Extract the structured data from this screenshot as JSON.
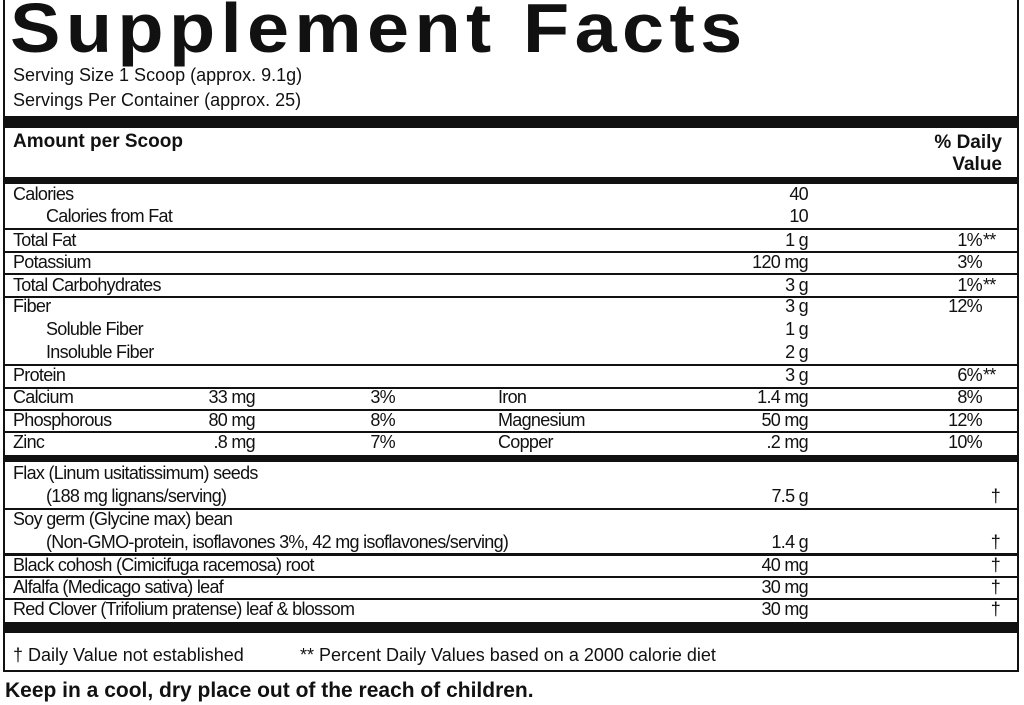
{
  "title": "Supplement Facts",
  "serving_size": "Serving Size 1 Scoop (approx. 9.1g)",
  "servings_per_container": "Servings Per Container (approx. 25)",
  "header": {
    "amount": "Amount per Scoop",
    "dv_line1": "% Daily",
    "dv_line2": "Value"
  },
  "nutrients": [
    {
      "name": "Calories",
      "amount": "40",
      "dv": ""
    },
    {
      "name": "Calories from Fat",
      "amount": "10",
      "dv": ""
    },
    {
      "name": "Total Fat",
      "amount": "1 g",
      "dv": "1%",
      "mark": "**"
    },
    {
      "name": "Potassium",
      "amount": "120 mg",
      "dv": "3%"
    },
    {
      "name": "Total Carbohydrates",
      "amount": "3 g",
      "dv": "1%",
      "mark": "**"
    },
    {
      "name": "Fiber",
      "amount": "3 g",
      "dv": "12%"
    },
    {
      "name": "Soluble Fiber",
      "amount": "1 g",
      "dv": ""
    },
    {
      "name": "Insoluble Fiber",
      "amount": "2 g",
      "dv": ""
    },
    {
      "name": "Protein",
      "amount": "3 g",
      "dv": "6%",
      "mark": "**"
    }
  ],
  "minerals": [
    {
      "name": "Calcium",
      "amount": "33 mg",
      "dv": "3%",
      "name2": "Iron",
      "amount2": "1.4 mg",
      "dv2": "8%"
    },
    {
      "name": "Phosphorous",
      "amount": "80 mg",
      "dv": "8%",
      "name2": "Magnesium",
      "amount2": "50 mg",
      "dv2": "12%"
    },
    {
      "name": "Zinc",
      "amount": ".8 mg",
      "dv": "7%",
      "name2": "Copper",
      "amount2": ".2 mg",
      "dv2": "10%"
    }
  ],
  "herbs": [
    {
      "name": "Flax (Linum usitatissimum) seeds",
      "detail": "(188 mg lignans/serving)",
      "amount": "7.5 g",
      "dv": "†"
    },
    {
      "name": "Soy germ (Glycine max) bean",
      "detail": "(Non-GMO-protein, isoflavones 3%, 42 mg isoflavones/serving)",
      "amount": "1.4 g",
      "dv": "†"
    },
    {
      "name": "Black cohosh (Cimicifuga racemosa) root",
      "amount": "40 mg",
      "dv": "†"
    },
    {
      "name": "Alfalfa (Medicago sativa) leaf",
      "amount": "30 mg",
      "dv": "†"
    },
    {
      "name": "Red Clover (Trifolium pratense) leaf & blossom",
      "amount": "30 mg",
      "dv": "†"
    }
  ],
  "footnotes": {
    "dagger": "† Daily Value not established",
    "percent": "** Percent Daily Values based on a 2000 calorie diet"
  },
  "warning": "Keep in a cool, dry place out of the reach of children."
}
